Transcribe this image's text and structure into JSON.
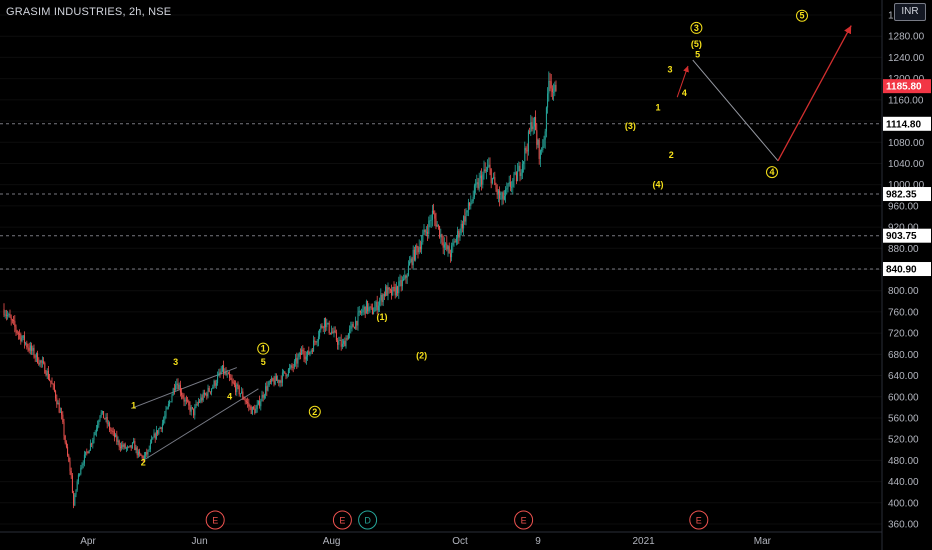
{
  "header": {
    "title": "GRASIM INDUSTRIES, 2h, NSE",
    "currency": "INR"
  },
  "chart_data": {
    "type": "candlestick",
    "ylim": [
      350,
      1330
    ],
    "y_ticks": [
      360,
      400,
      440,
      480,
      520,
      560,
      600,
      640,
      680,
      720,
      760,
      800,
      840,
      880,
      920,
      960,
      1000,
      1040,
      1080,
      1120,
      1160,
      1200,
      1240,
      1280,
      1320
    ],
    "y_tick_labels": [
      "360.00",
      "400.00",
      "440.00",
      "480.00",
      "520.00",
      "560.00",
      "600.00",
      "640.00",
      "680.00",
      "720.00",
      "760.00",
      "800.00",
      "840.00",
      "880.00",
      "920.00",
      "960.00",
      "1000.00",
      "1040.00",
      "1080.00",
      "1120.00",
      "1160.00",
      "1200.00",
      "1240.00",
      "1280.00",
      "1320.00"
    ],
    "x_labels": [
      "Apr",
      "Jun",
      "Aug",
      "Oct",
      "9",
      "2021",
      "Mar"
    ],
    "price_lines": [
      {
        "value": 1114.8,
        "label": "1114.80"
      },
      {
        "value": 982.35,
        "label": "982.35"
      },
      {
        "value": 903.75,
        "label": "903.75"
      },
      {
        "value": 840.9,
        "label": "840.90"
      }
    ],
    "last_price": {
      "value": 1185.8,
      "label": "1185.80"
    },
    "path": [
      [
        0,
        765
      ],
      [
        5,
        745
      ],
      [
        12,
        720
      ],
      [
        20,
        695
      ],
      [
        28,
        672
      ],
      [
        35,
        650
      ],
      [
        42,
        610
      ],
      [
        48,
        560
      ],
      [
        52,
        500
      ],
      [
        56,
        450
      ],
      [
        58,
        395
      ],
      [
        61,
        440
      ],
      [
        64,
        470
      ],
      [
        68,
        490
      ],
      [
        72,
        510
      ],
      [
        76,
        535
      ],
      [
        80,
        570
      ],
      [
        84,
        560
      ],
      [
        88,
        540
      ],
      [
        92,
        525
      ],
      [
        96,
        510
      ],
      [
        100,
        505
      ],
      [
        104,
        500
      ],
      [
        108,
        510
      ],
      [
        112,
        490
      ],
      [
        116,
        485
      ],
      [
        120,
        495
      ],
      [
        124,
        520
      ],
      [
        128,
        535
      ],
      [
        132,
        550
      ],
      [
        136,
        575
      ],
      [
        140,
        605
      ],
      [
        143,
        630
      ],
      [
        146,
        620
      ],
      [
        150,
        595
      ],
      [
        154,
        580
      ],
      [
        158,
        570
      ],
      [
        162,
        590
      ],
      [
        166,
        600
      ],
      [
        170,
        610
      ],
      [
        174,
        620
      ],
      [
        178,
        635
      ],
      [
        182,
        650
      ],
      [
        186,
        638
      ],
      [
        190,
        625
      ],
      [
        194,
        615
      ],
      [
        198,
        605
      ],
      [
        202,
        590
      ],
      [
        206,
        575
      ],
      [
        210,
        575
      ],
      [
        214,
        595
      ],
      [
        218,
        615
      ],
      [
        222,
        625
      ],
      [
        226,
        630
      ],
      [
        230,
        632
      ],
      [
        234,
        645
      ],
      [
        238,
        650
      ],
      [
        242,
        660
      ],
      [
        246,
        675
      ],
      [
        249,
        690
      ],
      [
        252,
        675
      ],
      [
        256,
        690
      ],
      [
        260,
        710
      ],
      [
        264,
        730
      ],
      [
        267,
        745
      ],
      [
        270,
        730
      ],
      [
        274,
        720
      ],
      [
        278,
        705
      ],
      [
        282,
        695
      ],
      [
        286,
        715
      ],
      [
        290,
        730
      ],
      [
        294,
        745
      ],
      [
        298,
        760
      ],
      [
        302,
        770
      ],
      [
        306,
        760
      ],
      [
        310,
        770
      ],
      [
        314,
        785
      ],
      [
        318,
        800
      ],
      [
        322,
        793
      ],
      [
        326,
        800
      ],
      [
        330,
        810
      ],
      [
        334,
        820
      ],
      [
        338,
        850
      ],
      [
        342,
        870
      ],
      [
        346,
        885
      ],
      [
        350,
        905
      ],
      [
        354,
        925
      ],
      [
        357,
        945
      ],
      [
        360,
        930
      ],
      [
        364,
        905
      ],
      [
        368,
        880
      ],
      [
        372,
        870
      ],
      [
        376,
        895
      ],
      [
        380,
        915
      ],
      [
        384,
        940
      ],
      [
        388,
        960
      ],
      [
        392,
        985
      ],
      [
        396,
        1005
      ],
      [
        400,
        1020
      ],
      [
        404,
        1030
      ],
      [
        407,
        1010
      ],
      [
        410,
        990
      ],
      [
        414,
        970
      ],
      [
        418,
        980
      ],
      [
        422,
        1000
      ],
      [
        426,
        1010
      ],
      [
        430,
        1030
      ],
      [
        434,
        1060
      ],
      [
        437,
        1085
      ],
      [
        440,
        1120
      ],
      [
        442,
        1115
      ],
      [
        444,
        1080
      ],
      [
        447,
        1055
      ],
      [
        450,
        1090
      ],
      [
        452,
        1130
      ],
      [
        454,
        1210
      ],
      [
        456,
        1195
      ],
      [
        458,
        1160
      ],
      [
        460,
        1190
      ]
    ],
    "wave_labels": [
      {
        "text": "1",
        "t": 108,
        "v": 578
      },
      {
        "text": "2",
        "t": 116,
        "v": 470
      },
      {
        "text": "3",
        "t": 143,
        "v": 660
      },
      {
        "text": "4",
        "t": 188,
        "v": 595
      },
      {
        "text": "5",
        "t": 216,
        "v": 660
      },
      {
        "text": "1",
        "t": 216,
        "v": 685,
        "circled": true
      },
      {
        "text": "2",
        "t": 259,
        "v": 566,
        "circled": true
      },
      {
        "text": "(1)",
        "t": 315,
        "v": 745
      },
      {
        "text": "(2)",
        "t": 348,
        "v": 672
      },
      {
        "text": "(3)",
        "t": 522,
        "v": 1105
      },
      {
        "text": "(4)",
        "t": 545,
        "v": 995
      },
      {
        "text": "1",
        "t": 545,
        "v": 1140
      },
      {
        "text": "2",
        "t": 556,
        "v": 1050
      },
      {
        "text": "3",
        "t": 555,
        "v": 1212
      },
      {
        "text": "4",
        "t": 567,
        "v": 1167
      },
      {
        "text": "5",
        "t": 578,
        "v": 1240
      },
      {
        "text": "(5)",
        "t": 577,
        "v": 1260
      },
      {
        "text": "3",
        "t": 577,
        "v": 1290,
        "circled": true
      },
      {
        "text": "4",
        "t": 640,
        "v": 1018,
        "circled": true
      },
      {
        "text": "5",
        "t": 665,
        "v": 1313,
        "circled": true
      }
    ],
    "events": [
      {
        "text": "E",
        "t": 176
      },
      {
        "text": "E",
        "t": 282
      },
      {
        "text": "D",
        "t": 303
      },
      {
        "text": "E",
        "t": 433
      },
      {
        "text": "E",
        "t": 579
      }
    ]
  }
}
